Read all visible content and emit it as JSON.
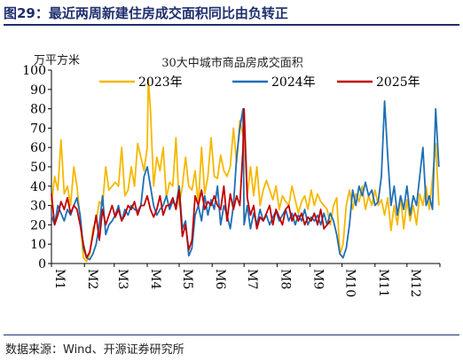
{
  "figure": {
    "title": "图29：最近两周新建住房成交面积同比由负转正",
    "source": "数据来源：Wind、开源证券研究所"
  },
  "chart_data": {
    "type": "line",
    "title": "30大中城市商品房成交面积",
    "ylabel": "万平方米",
    "ylim": [
      0,
      100
    ],
    "yticks": [
      0,
      10,
      20,
      30,
      40,
      50,
      60,
      70,
      80,
      90,
      100
    ],
    "x_ticks": [
      "M1",
      "M2",
      "M3",
      "M4",
      "M5",
      "M6",
      "M7",
      "M8",
      "M9",
      "M10",
      "M11",
      "M12"
    ],
    "x_unit": "day of year",
    "xlim": [
      1,
      366
    ],
    "grid": false,
    "legend": "top",
    "series": [
      {
        "name": "2023年",
        "color": "#f5b800",
        "x": [
          1,
          4,
          7,
          10,
          13,
          16,
          19,
          22,
          25,
          28,
          31,
          34,
          37,
          40,
          43,
          46,
          49,
          52,
          55,
          58,
          61,
          64,
          67,
          70,
          73,
          76,
          79,
          82,
          85,
          88,
          91,
          92,
          94,
          97,
          100,
          103,
          106,
          109,
          112,
          115,
          118,
          121,
          124,
          127,
          130,
          133,
          136,
          139,
          142,
          145,
          148,
          151,
          154,
          157,
          160,
          163,
          166,
          169,
          172,
          175,
          178,
          181,
          182,
          185,
          188,
          191,
          194,
          197,
          200,
          203,
          206,
          209,
          212,
          215,
          218,
          221,
          224,
          227,
          230,
          233,
          236,
          239,
          242,
          245,
          248,
          251,
          254,
          257,
          260,
          263,
          266,
          269,
          272,
          275,
          278,
          281,
          284,
          287,
          290,
          293,
          296,
          299,
          302,
          305,
          308,
          311,
          314,
          317,
          320,
          323,
          326,
          329,
          332,
          335,
          338,
          341,
          344,
          347,
          350,
          353,
          356,
          359,
          362,
          365
        ],
        "values": [
          30,
          45,
          38,
          64,
          36,
          40,
          30,
          50,
          40,
          23,
          3,
          1,
          5,
          18,
          22,
          32,
          30,
          50,
          38,
          40,
          42,
          40,
          60,
          35,
          38,
          50,
          40,
          62,
          55,
          48,
          60,
          95,
          80,
          40,
          55,
          48,
          60,
          34,
          42,
          40,
          65,
          30,
          40,
          55,
          40,
          38,
          48,
          30,
          60,
          36,
          45,
          65,
          45,
          44,
          56,
          48,
          45,
          50,
          70,
          52,
          74,
          66,
          70,
          35,
          50,
          35,
          50,
          30,
          38,
          43,
          38,
          33,
          40,
          28,
          35,
          32,
          30,
          40,
          33,
          26,
          32,
          35,
          28,
          38,
          30,
          36,
          32,
          30,
          28,
          20,
          30,
          34,
          5,
          10,
          30,
          38,
          28,
          36,
          32,
          40,
          28,
          35,
          30,
          38,
          30,
          33,
          25,
          34,
          17,
          30,
          20,
          35,
          18,
          33,
          22,
          30,
          20,
          36,
          30,
          40,
          28,
          44,
          62,
          30
        ]
      },
      {
        "name": "2024年",
        "color": "#1f6fb5",
        "x": [
          1,
          4,
          7,
          10,
          13,
          16,
          19,
          22,
          25,
          28,
          31,
          34,
          37,
          40,
          43,
          46,
          49,
          52,
          55,
          58,
          61,
          64,
          67,
          70,
          73,
          76,
          79,
          82,
          85,
          88,
          91,
          94,
          97,
          100,
          103,
          106,
          109,
          112,
          115,
          118,
          121,
          124,
          127,
          130,
          133,
          136,
          139,
          142,
          145,
          148,
          151,
          154,
          157,
          160,
          163,
          166,
          169,
          172,
          175,
          178,
          181,
          182,
          185,
          188,
          191,
          194,
          197,
          200,
          203,
          206,
          209,
          212,
          215,
          218,
          221,
          224,
          227,
          230,
          233,
          236,
          239,
          242,
          245,
          248,
          251,
          254,
          257,
          260,
          263,
          266,
          269,
          272,
          275,
          278,
          281,
          284,
          287,
          290,
          293,
          296,
          299,
          302,
          305,
          308,
          311,
          314,
          317,
          320,
          323,
          326,
          329,
          332,
          335,
          338,
          341,
          344,
          347,
          350,
          353,
          356,
          359,
          362,
          365
        ],
        "values": [
          25,
          20,
          30,
          26,
          22,
          28,
          25,
          30,
          34,
          25,
          8,
          3,
          2,
          5,
          10,
          20,
          35,
          15,
          20,
          22,
          25,
          30,
          22,
          28,
          25,
          30,
          28,
          27,
          30,
          45,
          50,
          40,
          30,
          25,
          28,
          30,
          35,
          28,
          32,
          30,
          40,
          18,
          22,
          4,
          8,
          25,
          30,
          22,
          35,
          25,
          33,
          28,
          40,
          20,
          30,
          25,
          18,
          30,
          55,
          70,
          80,
          20,
          30,
          18,
          26,
          20,
          28,
          22,
          25,
          20,
          24,
          27,
          22,
          25,
          28,
          22,
          26,
          20,
          25,
          22,
          28,
          20,
          24,
          22,
          25,
          20,
          26,
          20,
          26,
          22,
          15,
          5,
          3,
          8,
          20,
          38,
          30,
          40,
          35,
          42,
          35,
          38,
          30,
          32,
          45,
          84,
          55,
          30,
          40,
          25,
          35,
          28,
          40,
          25,
          35,
          30,
          45,
          60,
          30,
          35,
          28,
          80,
          50
        ]
      },
      {
        "name": "2025年",
        "color": "#c00000",
        "x": [
          1,
          4,
          7,
          10,
          13,
          16,
          19,
          22,
          25,
          28,
          31,
          34,
          37,
          40,
          43,
          46,
          49,
          52,
          55,
          58,
          61,
          64,
          67,
          70,
          73,
          76,
          79,
          82,
          85,
          88,
          91,
          94,
          97,
          100,
          103,
          106,
          109,
          112,
          115,
          118,
          121,
          124,
          127,
          130,
          133,
          136,
          139,
          142,
          145,
          148,
          151,
          154,
          157,
          160,
          163,
          166,
          169,
          172,
          175,
          178,
          181,
          182,
          185,
          188,
          191,
          194,
          197,
          200,
          203,
          206,
          209,
          212,
          215,
          218,
          221,
          224,
          227,
          230,
          233,
          236,
          239,
          242,
          245,
          248,
          251,
          254,
          257,
          260,
          263
        ],
        "values": [
          36,
          20,
          25,
          32,
          28,
          34,
          26,
          30,
          28,
          20,
          10,
          3,
          6,
          15,
          25,
          12,
          28,
          20,
          25,
          30,
          24,
          28,
          22,
          25,
          30,
          28,
          32,
          25,
          30,
          30,
          35,
          28,
          24,
          28,
          35,
          25,
          30,
          30,
          34,
          28,
          38,
          14,
          20,
          7,
          12,
          35,
          30,
          38,
          28,
          32,
          30,
          35,
          30,
          28,
          40,
          22,
          36,
          28,
          35,
          30,
          60,
          80,
          34,
          25,
          30,
          18,
          24,
          22,
          26,
          30,
          20,
          28,
          24,
          20,
          28,
          30,
          22,
          26,
          22,
          26,
          20,
          24,
          22,
          26,
          20,
          28,
          18,
          20,
          22
        ]
      }
    ]
  }
}
